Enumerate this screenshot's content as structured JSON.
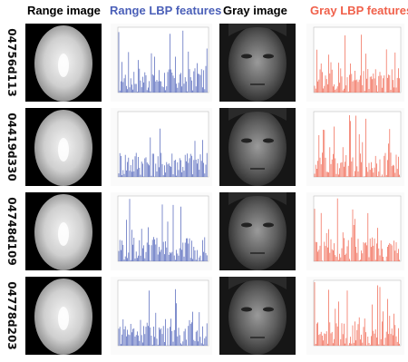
{
  "headers": {
    "range_image": "Range image",
    "range_lbp": "Range LBP features",
    "gray_image": "Gray image",
    "gray_lbp": "Gray LBP features"
  },
  "colors": {
    "range_lbp": "#4a5fb8",
    "gray_lbp": "#f0604a",
    "header_text": "#000000"
  },
  "rows": [
    {
      "id": "04756d113"
    },
    {
      "id": "04419d330"
    },
    {
      "id": "04748d109"
    },
    {
      "id": "04778d203"
    }
  ]
}
